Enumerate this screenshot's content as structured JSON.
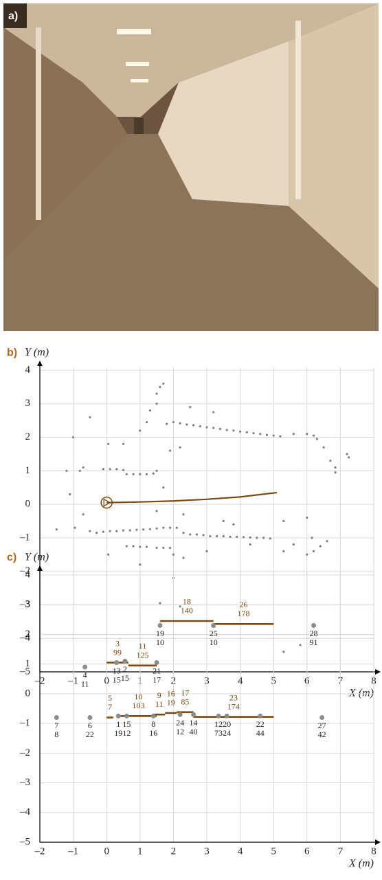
{
  "photo_label": "a)",
  "chart_data": [
    {
      "type": "scatter",
      "label": "b)",
      "ylabel": "Y (m)",
      "xlabel": "X (m)",
      "xlim": [
        -2,
        8
      ],
      "ylim": [
        -5,
        4
      ],
      "xticks": [
        {
          "value": -2,
          "label": "–2"
        },
        {
          "value": -1,
          "label": "–1"
        },
        0,
        1,
        2,
        3,
        4,
        5,
        6,
        7,
        8
      ],
      "yticks": [
        {
          "value": -5,
          "label": "–5"
        },
        {
          "value": -4,
          "label": "–4"
        },
        {
          "value": -3,
          "label": "–3"
        },
        {
          "value": -2,
          "label": "–2"
        },
        {
          "value": -1,
          "label": "–1"
        },
        0,
        1,
        2,
        3,
        4
      ],
      "grid": true,
      "points": {
        "color": "#7f7f7f",
        "x": [
          1.8,
          2.0,
          2.2,
          2.4,
          2.6,
          2.8,
          3.0,
          3.2,
          3.4,
          3.6,
          3.8,
          4.0,
          4.2,
          4.4,
          4.6,
          4.8,
          5.0,
          5.2,
          -0.1,
          0.1,
          0.3,
          0.5,
          0.6,
          0.8,
          1.0,
          1.2,
          1.4,
          1.5,
          -0.5,
          -0.3,
          -0.1,
          0.1,
          0.3,
          0.5,
          0.7,
          0.9,
          1.1,
          1.3,
          1.5,
          1.7,
          1.9,
          2.1,
          2.3,
          2.5,
          2.7,
          2.9,
          3.1,
          3.3,
          3.5,
          3.7,
          3.9,
          4.1,
          4.3,
          4.5,
          4.7,
          4.9,
          0.6,
          0.8,
          1.0,
          1.2,
          1.5,
          1.7,
          1.9,
          6.0,
          6.2,
          6.3,
          6.5,
          6.7,
          6.85,
          6.85,
          7.2,
          7.25,
          6.0,
          6.2,
          6.4,
          6.6,
          6.15,
          6.0,
          -1.2,
          -1.0,
          -0.7,
          -0.8,
          -1.1,
          -0.5,
          -1.5,
          -0.7,
          -0.95,
          1.6,
          1.7,
          1.5,
          1.5,
          1.3,
          2.5,
          3.2,
          1.2,
          1.0,
          0.05,
          0.5,
          1.9,
          2.2,
          1.7,
          1.5,
          2.3,
          2.0,
          2.3,
          2.0,
          1.6,
          2.2,
          1.0,
          0.05,
          3.5,
          3.8,
          4.3,
          5.3,
          5.6,
          5.3,
          5.8,
          5.6,
          5.3,
          3.0
        ],
        "y": [
          2.4,
          2.45,
          2.42,
          2.38,
          2.36,
          2.33,
          2.3,
          2.28,
          2.25,
          2.22,
          2.2,
          2.17,
          2.15,
          2.12,
          2.1,
          2.07,
          2.05,
          2.03,
          1.05,
          1.05,
          1.05,
          1.02,
          0.9,
          0.9,
          0.9,
          0.9,
          0.92,
          1.0,
          -0.8,
          -0.85,
          -0.82,
          -0.8,
          -0.8,
          -0.78,
          -0.78,
          -0.76,
          -0.75,
          -0.74,
          -0.72,
          -0.7,
          -0.7,
          -0.7,
          -0.85,
          -0.9,
          -0.9,
          -0.92,
          -0.95,
          -0.95,
          -0.95,
          -0.97,
          -0.97,
          -0.98,
          -0.99,
          -1.0,
          -1.0,
          -1.02,
          -1.25,
          -1.25,
          -1.27,
          -1.27,
          -1.3,
          -1.3,
          -1.3,
          2.1,
          2.05,
          1.95,
          1.7,
          1.3,
          1.1,
          0.95,
          1.5,
          1.4,
          -1.5,
          -1.4,
          -1.25,
          -1.1,
          -1.0,
          -0.4,
          1.0,
          2.0,
          1.1,
          1.0,
          0.3,
          2.6,
          -0.75,
          -0.3,
          -0.7,
          3.5,
          3.6,
          3.3,
          3.0,
          2.8,
          2.9,
          2.75,
          2.45,
          2.2,
          1.8,
          1.8,
          1.6,
          1.7,
          0.5,
          -0.2,
          -0.3,
          -1.5,
          -1.6,
          -2.2,
          -2.95,
          -3.05,
          -1.8,
          -1.5,
          -0.5,
          -0.6,
          -1.2,
          -1.4,
          -1.2,
          -4.4,
          -4.2,
          2.1,
          -0.5,
          -1.4
        ]
      },
      "path": {
        "color": "#7a4a10",
        "x": [
          0,
          1,
          2,
          3,
          4,
          5.1
        ],
        "y": [
          0.05,
          0.07,
          0.1,
          0.15,
          0.22,
          0.35
        ]
      }
    },
    {
      "type": "features",
      "label": "c)",
      "ylabel": "Y (m)",
      "xlabel": "X (m)",
      "xlim": [
        -2,
        8
      ],
      "ylim": [
        -5,
        4
      ],
      "xticks": [
        {
          "value": -2,
          "label": "–2"
        },
        {
          "value": -1,
          "label": "–1"
        },
        0,
        1,
        2,
        3,
        4,
        5,
        6,
        7,
        8
      ],
      "yticks": [
        {
          "value": -5,
          "label": "–5"
        },
        {
          "value": -4,
          "label": "–4"
        },
        {
          "value": -3,
          "label": "–3"
        },
        {
          "value": -2,
          "label": "–2"
        },
        {
          "value": -1,
          "label": "–1"
        },
        0,
        1,
        2,
        3,
        4
      ],
      "grid": true,
      "point_color": "#8c8c8c",
      "segment_color": "#7a4a10",
      "points": [
        {
          "x": -1.5,
          "y": -0.8,
          "id": 7,
          "n": 8
        },
        {
          "x": -0.5,
          "y": -0.8,
          "id": 6,
          "n": 22
        },
        {
          "x": -0.65,
          "y": 0.9,
          "id": 4,
          "n": 11
        },
        {
          "x": 0.35,
          "y": -0.75,
          "id": 1,
          "n": 19
        },
        {
          "x": 0.6,
          "y": -0.75,
          "id": 15,
          "n": 12
        },
        {
          "x": 0.3,
          "y": 1.05,
          "id": 13,
          "n": 15
        },
        {
          "x": 0.55,
          "y": 1.1,
          "id": 2,
          "n": 15
        },
        {
          "x": 1.5,
          "y": 1.05,
          "id": 21,
          "n": 17
        },
        {
          "x": 1.6,
          "y": 2.3,
          "id": 19,
          "n": 10
        },
        {
          "x": 1.4,
          "y": -0.75,
          "id": 8,
          "n": 16
        },
        {
          "x": 2.2,
          "y": -0.7,
          "id": 24,
          "n": 12
        },
        {
          "x": 2.6,
          "y": -0.7,
          "id": 14,
          "n": 40
        },
        {
          "x": 3.2,
          "y": 2.3,
          "id": 25,
          "n": 10
        },
        {
          "x": 3.35,
          "y": -0.75,
          "id": 12,
          "n": 73
        },
        {
          "x": 3.6,
          "y": -0.75,
          "id": 20,
          "n": 24
        },
        {
          "x": 4.6,
          "y": -0.75,
          "id": 22,
          "n": 44
        },
        {
          "x": 6.2,
          "y": 2.3,
          "id": 28,
          "n": 91
        },
        {
          "x": 6.45,
          "y": -0.8,
          "id": 27,
          "n": 42
        }
      ],
      "segments": [
        {
          "x": [
            0,
            0.65
          ],
          "y": [
            1.05,
            1.05
          ],
          "id": 3,
          "n": 99
        },
        {
          "x": 0.65,
          "y": 0.95,
          "id": 11,
          "n": 125,
          "x2": 1.5
        },
        {
          "x": [
            1.6,
            3.2
          ],
          "y": [
            2.45,
            2.45
          ],
          "id": 18,
          "n": 140
        },
        {
          "x": [
            3.2,
            5.0
          ],
          "y": [
            2.35,
            2.35
          ],
          "id": 26,
          "n": 178
        },
        {
          "x": [
            0.0,
            0.2
          ],
          "y": [
            -0.8,
            -0.8
          ],
          "id": 5,
          "n": 7
        },
        {
          "x": [
            0.4,
            1.5
          ],
          "y": [
            -0.75,
            -0.75
          ],
          "id": 10,
          "n": 103
        },
        {
          "x": [
            1.4,
            1.75
          ],
          "y": [
            -0.7,
            -0.7
          ],
          "id": 9,
          "n": 11
        },
        {
          "x": [
            1.75,
            2.1
          ],
          "y": [
            -0.65,
            -0.65
          ],
          "id": 16,
          "n": 19
        },
        {
          "x": [
            2.1,
            2.6
          ],
          "y": [
            -0.62,
            -0.62
          ],
          "id": 17,
          "n": 85
        },
        {
          "x": [
            2.6,
            5.0
          ],
          "y": [
            -0.78,
            -0.78
          ],
          "id": 23,
          "n": 174
        }
      ]
    }
  ]
}
